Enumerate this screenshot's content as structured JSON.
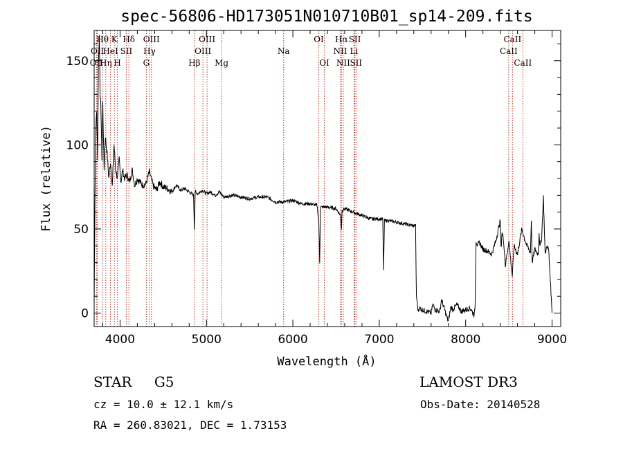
{
  "chart_data": {
    "type": "line",
    "title": "spec-56806-HD173051N010710B01_sp14-209.fits",
    "xlabel": "Wavelength (Å)",
    "ylabel": "Flux (relative)",
    "xlim": [
      3700,
      9100
    ],
    "ylim": [
      -8,
      168
    ],
    "x_ticks": [
      4000,
      5000,
      6000,
      7000,
      8000,
      9000
    ],
    "y_ticks": [
      0,
      50,
      100,
      150
    ],
    "series": [
      {
        "x": [
          3700,
          3710,
          3720,
          3730,
          3740,
          3750,
          3760,
          3770,
          3780,
          3790,
          3800,
          3815,
          3830,
          3850,
          3870,
          3890,
          3910,
          3930,
          3950,
          3970,
          3990,
          4010,
          4030,
          4050,
          4080,
          4110,
          4140,
          4170,
          4200,
          4230,
          4260,
          4300,
          4340,
          4380,
          4420,
          4460,
          4500,
          4550,
          4600,
          4650,
          4700,
          4750,
          4800,
          4850,
          4860,
          4870,
          4900,
          4950,
          5000,
          5050,
          5100,
          5150,
          5200,
          5300,
          5400,
          5500,
          5600,
          5700,
          5800,
          5900,
          6000,
          6100,
          6200,
          6280,
          6300,
          6310,
          6320,
          6400,
          6500,
          6555,
          6562,
          6570,
          6600,
          6700,
          6800,
          6900,
          7000,
          7040,
          7050,
          7060,
          7100,
          7200,
          7300,
          7380,
          7420,
          7430,
          7450,
          7460,
          7500,
          7550,
          7600,
          7620,
          7650,
          7700,
          7720,
          7750,
          7780,
          7800,
          7820,
          7830,
          7850,
          7900,
          7950,
          8000,
          8050,
          8100,
          8110,
          8120,
          8140,
          8160,
          8200,
          8250,
          8300,
          8350,
          8400,
          8410,
          8420,
          8440,
          8460,
          8500,
          8540,
          8560,
          8600,
          8650,
          8700,
          8750,
          8760,
          8770,
          8800,
          8840,
          8850,
          8860,
          8880,
          8900,
          8920,
          8940,
          8960,
          8980,
          9000
        ],
        "y": [
          5,
          70,
          110,
          120,
          90,
          150,
          165,
          130,
          118,
          92,
          125,
          85,
          105,
          95,
          80,
          90,
          75,
          100,
          85,
          80,
          92,
          78,
          85,
          80,
          82,
          78,
          85,
          76,
          80,
          78,
          76,
          77,
          84,
          76,
          73,
          78,
          75,
          74,
          72,
          76,
          73,
          74,
          72,
          70,
          50,
          72,
          71,
          73,
          71,
          72,
          70,
          72,
          69,
          70,
          69,
          68,
          69,
          69,
          66,
          66,
          67,
          65,
          65,
          64,
          55,
          30,
          63,
          63,
          62,
          58,
          50,
          61,
          62,
          60,
          58,
          56,
          56,
          56,
          25,
          55,
          55,
          54,
          53,
          52,
          52,
          10,
          1,
          3,
          2,
          1,
          0,
          5,
          2,
          1,
          8,
          3,
          -2,
          -5,
          1,
          4,
          2,
          5,
          1,
          2,
          3,
          -1,
          5,
          43,
          40,
          42,
          38,
          37,
          35,
          43,
          55,
          38,
          48,
          43,
          28,
          43,
          22,
          40,
          35,
          50,
          41,
          36,
          55,
          30,
          38,
          35,
          48,
          39,
          45,
          69,
          35,
          40,
          38,
          20,
          0
        ],
        "noise": 0.1
      }
    ],
    "spectral_lines": [
      {
        "label": "OII",
        "wavelength": 3727,
        "row": 3
      },
      {
        "label": "Hθ",
        "wavelength": 3797,
        "row": 1
      },
      {
        "label": "OII",
        "wavelength": 3737,
        "row": 2
      },
      {
        "label": "Hη",
        "wavelength": 3835,
        "row": 3
      },
      {
        "label": "HeI",
        "wavelength": 3889,
        "row": 2
      },
      {
        "label": "K",
        "wavelength": 3934,
        "row": 1
      },
      {
        "label": "SII",
        "wavelength": 4072,
        "row": 2
      },
      {
        "label": "H",
        "wavelength": 3969,
        "row": 3
      },
      {
        "label": "Hδ",
        "wavelength": 4102,
        "row": 1
      },
      {
        "label": "OIII",
        "wavelength": 4363,
        "row": 1
      },
      {
        "label": "Hγ",
        "wavelength": 4341,
        "row": 2
      },
      {
        "label": "G",
        "wavelength": 4304,
        "row": 3
      },
      {
        "label": "Hβ",
        "wavelength": 4861,
        "row": 3
      },
      {
        "label": "OIII",
        "wavelength": 5007,
        "row": 1
      },
      {
        "label": "OIII",
        "wavelength": 4959,
        "row": 2
      },
      {
        "label": "Mg",
        "wavelength": 5175,
        "row": 3
      },
      {
        "label": "Na",
        "wavelength": 5893,
        "row": 2
      },
      {
        "label": "OI",
        "wavelength": 6300,
        "row": 1
      },
      {
        "label": "OI",
        "wavelength": 6364,
        "row": 3
      },
      {
        "label": "Hα",
        "wavelength": 6563,
        "row": 1
      },
      {
        "label": "NII",
        "wavelength": 6548,
        "row": 2
      },
      {
        "label": "NII",
        "wavelength": 6583,
        "row": 3
      },
      {
        "label": "SII",
        "wavelength": 6717,
        "row": 1
      },
      {
        "label": "Li",
        "wavelength": 6708,
        "row": 2
      },
      {
        "label": "SII",
        "wavelength": 6731,
        "row": 3
      },
      {
        "label": "CaII",
        "wavelength": 8542,
        "row": 1
      },
      {
        "label": "CaII",
        "wavelength": 8498,
        "row": 2
      },
      {
        "label": "CaII",
        "wavelength": 8662,
        "row": 3
      }
    ],
    "grid": false
  },
  "info": {
    "class_label": "STAR",
    "subclass": "G5",
    "survey": "LAMOST DR3",
    "cz": "cz = 10.0 ± 12.1 km/s",
    "obs_date": "Obs-Date: 20140528",
    "radec": "RA = 260.83021, DEC =    1.73153"
  },
  "colors": {
    "spectrum": "#000000",
    "lines": "#c0392b",
    "axes": "#000000"
  }
}
